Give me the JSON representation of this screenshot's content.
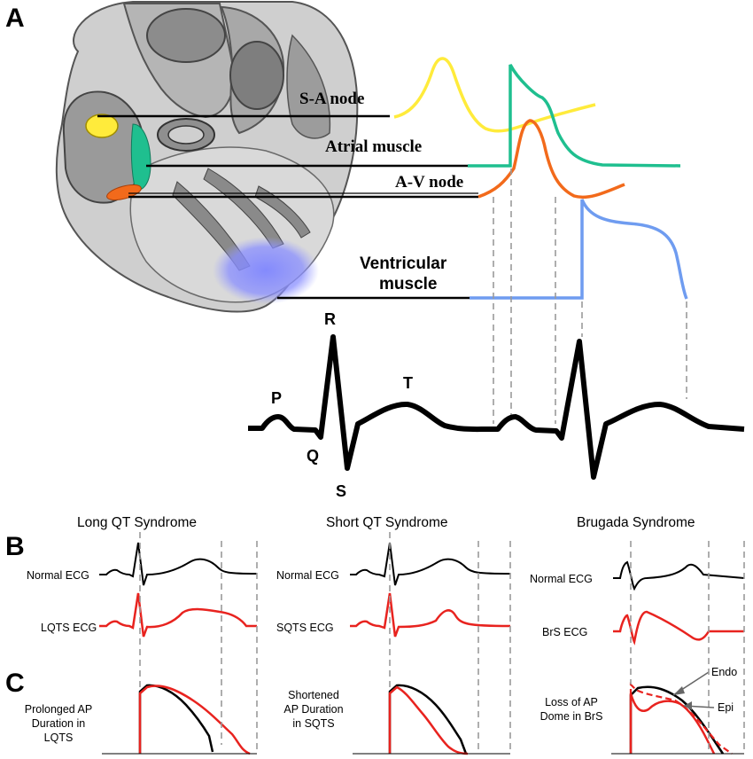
{
  "panel_a": {
    "letter": "A",
    "labels": {
      "sa_node": "S-A node",
      "atrial_muscle": "Atrial muscle",
      "av_node": "A-V node",
      "ventricular_line1": "Ventricular",
      "ventricular_line2": "muscle"
    },
    "ecg_waves": {
      "p": "P",
      "q": "Q",
      "r": "R",
      "s": "S",
      "t": "T"
    },
    "colors": {
      "sa_node": "#ffeb3b",
      "atrial_muscle": "#1fbf8f",
      "av_node": "#f26a1b",
      "ventricular_muscle": "#6f9cf0"
    }
  },
  "panel_b": {
    "letter": "B",
    "columns": [
      {
        "title": "Long QT Syndrome",
        "normal_label": "Normal ECG",
        "abnormal_label": "LQTS ECG"
      },
      {
        "title": "Short QT Syndrome",
        "normal_label": "Normal ECG",
        "abnormal_label": "SQTS ECG"
      },
      {
        "title": "Brugada Syndrome",
        "normal_label": "Normal ECG",
        "abnormal_label": "BrS ECG"
      }
    ]
  },
  "panel_c": {
    "letter": "C",
    "columns": [
      {
        "label_lines": [
          "Prolonged AP",
          "Duration in",
          "LQTS"
        ]
      },
      {
        "label_lines": [
          "Shortened",
          "AP Duration",
          "in SQTS"
        ]
      },
      {
        "label_lines": [
          "Loss of AP",
          "Dome in BrS"
        ],
        "endo_label": "Endo",
        "epi_label": "Epi"
      }
    ]
  },
  "colors": {
    "normal_trace": "#000000",
    "abnormal_trace": "#e8231f",
    "guide": "#9a9a9a"
  }
}
